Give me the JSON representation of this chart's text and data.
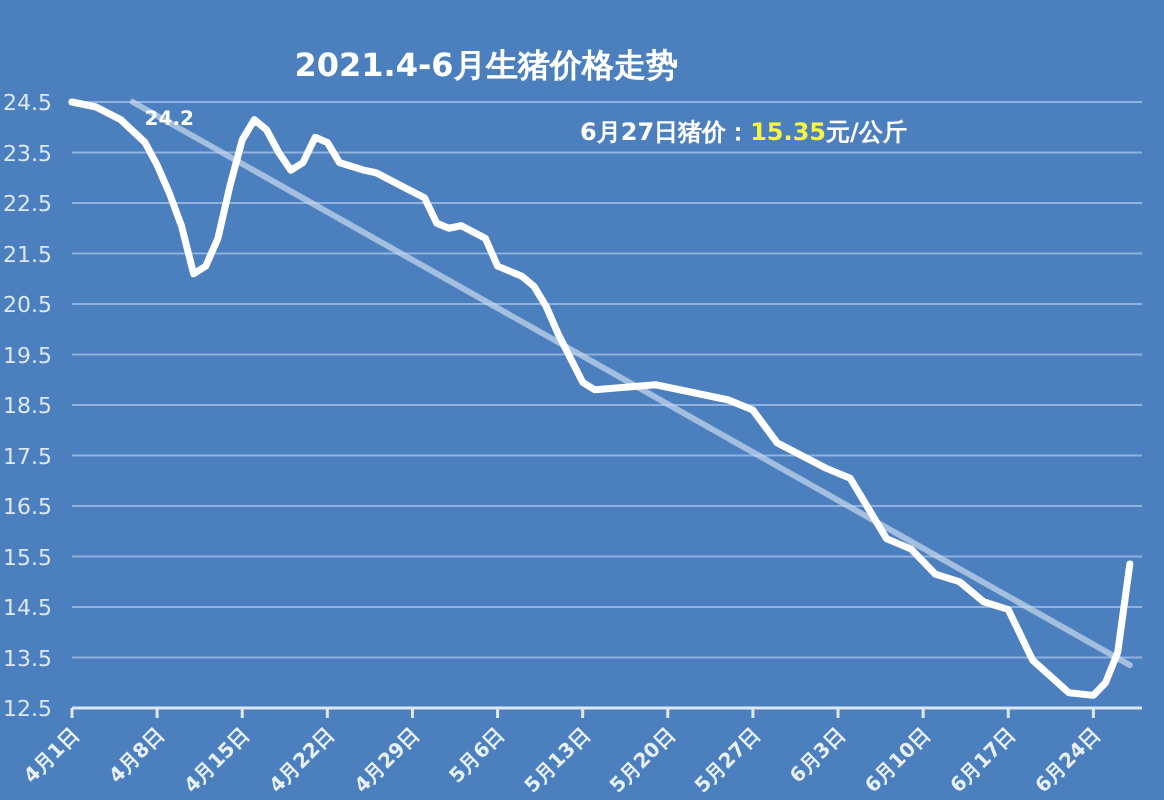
{
  "chart_data": {
    "type": "line",
    "title": "2021.4-6月生猪价格走势",
    "annotations": [
      {
        "text": "24.2",
        "x": "2021-04-09",
        "y": 24.2
      },
      "6月27日猪价：15.35元/公斤"
    ],
    "xlim": [
      "2021-04-01",
      "2021-06-28"
    ],
    "xticks": [
      {
        "value": "2021-04-01",
        "label": "4月1日"
      },
      {
        "value": "2021-04-08",
        "label": "4月8日"
      },
      {
        "value": "2021-04-15",
        "label": "4月15日"
      },
      {
        "value": "2021-04-22",
        "label": "4月22日"
      },
      {
        "value": "2021-04-29",
        "label": "4月29日"
      },
      {
        "value": "2021-05-06",
        "label": "5月6日"
      },
      {
        "value": "2021-05-13",
        "label": "5月13日"
      },
      {
        "value": "2021-05-20",
        "label": "5月20日"
      },
      {
        "value": "2021-05-27",
        "label": "5月27日"
      },
      {
        "value": "2021-06-03",
        "label": "6月3日"
      },
      {
        "value": "2021-06-10",
        "label": "6月10日"
      },
      {
        "value": "2021-06-17",
        "label": "6月17日"
      },
      {
        "value": "2021-06-24",
        "label": "6月24日"
      }
    ],
    "ylim": [
      12.5,
      24.5
    ],
    "yticks": [
      12.5,
      13.5,
      14.5,
      15.5,
      16.5,
      17.5,
      18.5,
      19.5,
      20.5,
      21.5,
      22.5,
      23.5,
      24.5
    ],
    "grid": "y",
    "marker": "none",
    "line_style": "solid",
    "series": [
      {
        "color": "#ffffff",
        "x": [
          "2021-04-01",
          "2021-04-03",
          "2021-04-05",
          "2021-04-07",
          "2021-04-08",
          "2021-04-09",
          "2021-04-10",
          "2021-04-11",
          "2021-04-12",
          "2021-04-13",
          "2021-04-14",
          "2021-04-15",
          "2021-04-16",
          "2021-04-17",
          "2021-04-18",
          "2021-04-19",
          "2021-04-20",
          "2021-04-21",
          "2021-04-22",
          "2021-04-23",
          "2021-04-25",
          "2021-04-26",
          "2021-04-28",
          "2021-04-30",
          "2021-05-01",
          "2021-05-02",
          "2021-05-03",
          "2021-05-05",
          "2021-05-06",
          "2021-05-08",
          "2021-05-09",
          "2021-05-10",
          "2021-05-11",
          "2021-05-13",
          "2021-05-14",
          "2021-05-19",
          "2021-05-25",
          "2021-05-27",
          "2021-05-29",
          "2021-06-02",
          "2021-06-04",
          "2021-06-05",
          "2021-06-07",
          "2021-06-08",
          "2021-06-09",
          "2021-06-11",
          "2021-06-13",
          "2021-06-15",
          "2021-06-17",
          "2021-06-19",
          "2021-06-22",
          "2021-06-24",
          "2021-06-25",
          "2021-06-26",
          "2021-06-27"
        ],
        "values": [
          24.5,
          24.4,
          24.15,
          23.7,
          23.25,
          22.7,
          22.05,
          21.1,
          21.25,
          21.8,
          22.85,
          23.75,
          24.15,
          23.95,
          23.5,
          23.15,
          23.3,
          23.8,
          23.7,
          23.3,
          23.15,
          23.1,
          22.85,
          22.6,
          22.1,
          22.0,
          22.05,
          21.8,
          21.25,
          21.05,
          20.85,
          20.45,
          19.9,
          18.95,
          18.8,
          18.9,
          18.6,
          18.4,
          17.75,
          17.25,
          17.05,
          16.65,
          15.85,
          15.75,
          15.65,
          15.15,
          15.0,
          14.6,
          14.45,
          13.45,
          12.8,
          12.75,
          13.0,
          13.6,
          15.35
        ]
      },
      {
        "color": "#c9d8ee",
        "x": [
          "2021-04-06",
          "2021-06-27"
        ],
        "values": [
          24.5,
          13.35
        ]
      }
    ]
  }
}
